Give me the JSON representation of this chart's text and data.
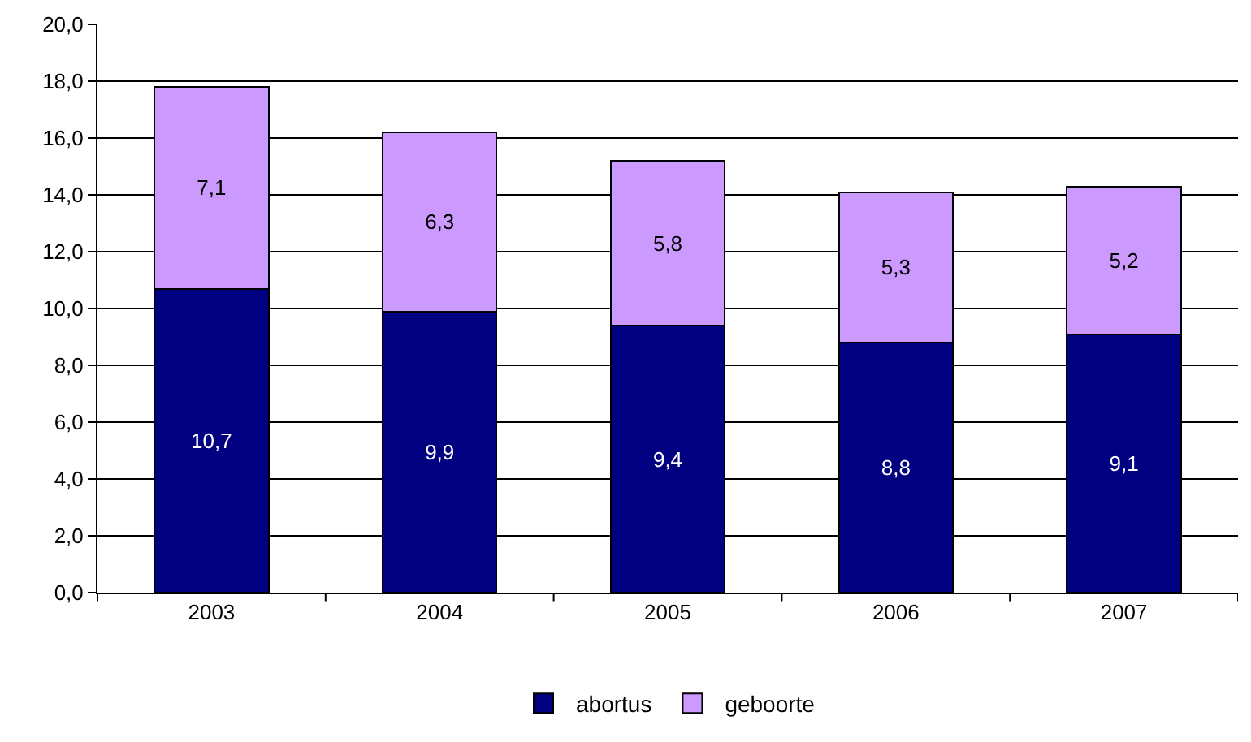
{
  "chart_data": {
    "type": "bar",
    "stacked": true,
    "categories": [
      "2003",
      "2004",
      "2005",
      "2006",
      "2007"
    ],
    "series": [
      {
        "name": "abortus",
        "color": "#000080",
        "values": [
          10.7,
          9.9,
          9.4,
          8.8,
          9.1
        ],
        "value_labels": [
          "10,7",
          "9,9",
          "9,4",
          "8,8",
          "9,1"
        ]
      },
      {
        "name": "geboorte",
        "color": "#cc99ff",
        "values": [
          7.1,
          6.3,
          5.8,
          5.3,
          5.2
        ],
        "value_labels": [
          "7,1",
          "6,3",
          "5,8",
          "5,3",
          "5,2"
        ]
      }
    ],
    "ylim": [
      0,
      20
    ],
    "yticks": [
      {
        "value": 0,
        "label": "0,0"
      },
      {
        "value": 2,
        "label": "2,0"
      },
      {
        "value": 4,
        "label": "4,0"
      },
      {
        "value": 6,
        "label": "6,0"
      },
      {
        "value": 8,
        "label": "8,0"
      },
      {
        "value": 10,
        "label": "10,0"
      },
      {
        "value": 12,
        "label": "12,0"
      },
      {
        "value": 14,
        "label": "14,0"
      },
      {
        "value": 16,
        "label": "16,0"
      },
      {
        "value": 18,
        "label": "18,0"
      },
      {
        "value": 20,
        "label": "20,0"
      }
    ],
    "grid": "y",
    "legend": "bottom"
  }
}
